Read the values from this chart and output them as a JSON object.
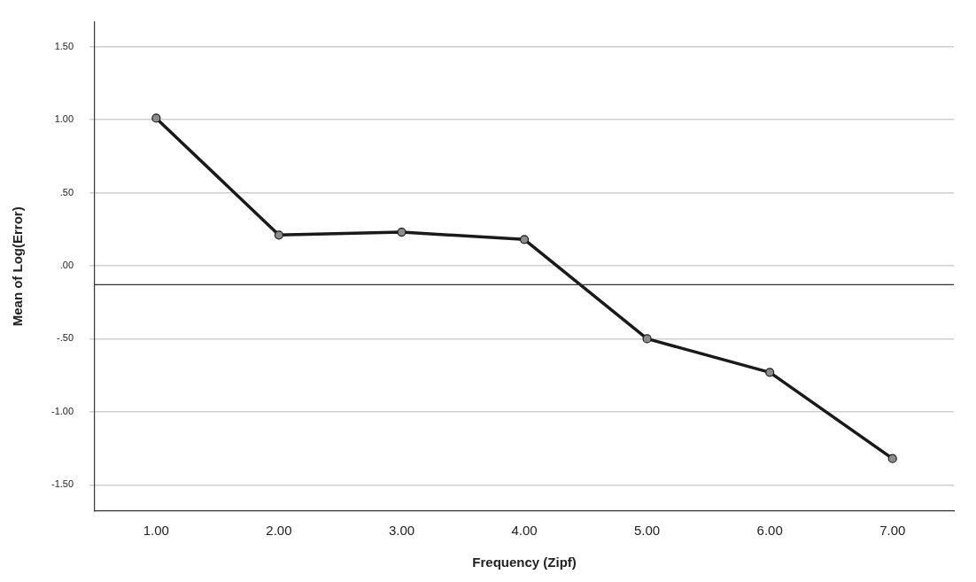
{
  "chart_data": {
    "type": "line",
    "xlabel": "Frequency (Zipf)",
    "ylabel": "Mean of Log(Error)",
    "categories": [
      "1.00",
      "2.00",
      "3.00",
      "4.00",
      "5.00",
      "6.00",
      "7.00"
    ],
    "series": [
      {
        "color": "#1a1a1a",
        "values": [
          1.01,
          0.21,
          0.23,
          0.18,
          -0.5,
          -0.73,
          -1.32
        ]
      }
    ],
    "ylim": [
      -1.68,
      1.67
    ],
    "yticks": [
      {
        "value": -1.5,
        "label": "-1.50"
      },
      {
        "value": -1,
        "label": "-1.00"
      },
      {
        "value": -0.5,
        "label": "-.50"
      },
      {
        "value": 0,
        "label": ".00"
      },
      {
        "value": 0.5,
        "label": ".50"
      },
      {
        "value": 1,
        "label": "1.00"
      },
      {
        "value": 1.5,
        "label": "1.50"
      }
    ],
    "ref_lines": [
      {
        "axis": "y",
        "value": -0.13,
        "color": "#333333"
      }
    ],
    "grid": "y",
    "legend": false,
    "marker": "circle",
    "line_style": "solid"
  }
}
